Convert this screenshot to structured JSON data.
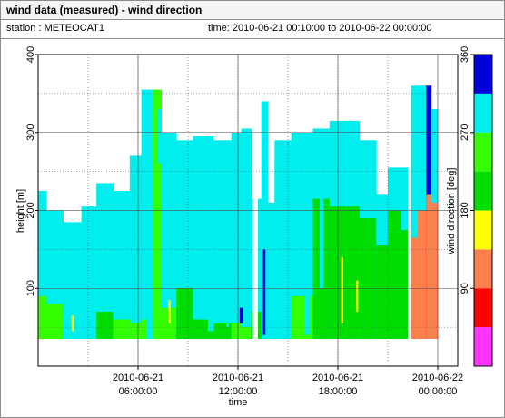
{
  "header": {
    "title": "wind data (measured) - wind direction",
    "station": "station : METEOCAT1",
    "time_range": "time: 2010-06-21 00:10:00 to 2010-06-22 00:00:00"
  },
  "chart_data": {
    "type": "heatmap",
    "xlabel": "time",
    "ylabel": "height [m]",
    "x_ticks": [
      {
        "hour": 6,
        "line1": "2010-06-21",
        "line2": "06:00:00"
      },
      {
        "hour": 12,
        "line1": "2010-06-21",
        "line2": "12:00:00"
      },
      {
        "hour": 18,
        "line1": "2010-06-21",
        "line2": "18:00:00"
      },
      {
        "hour": 24,
        "line1": "2010-06-22",
        "line2": "00:00:00"
      }
    ],
    "xlim_hours": [
      0,
      24
    ],
    "ylim": [
      0,
      400
    ],
    "y_ticks": [
      100,
      200,
      300,
      400
    ],
    "grid": true,
    "colorbar": {
      "label": "wind direction [deg]",
      "range": [
        0,
        360
      ],
      "ticks": [
        90,
        180,
        270,
        360
      ],
      "bins": [
        {
          "from": 0,
          "to": 45,
          "color": "#ff33ff"
        },
        {
          "from": 45,
          "to": 90,
          "color": "#ff0000"
        },
        {
          "from": 90,
          "to": 135,
          "color": "#ff7f4c"
        },
        {
          "from": 135,
          "to": 180,
          "color": "#ffff00"
        },
        {
          "from": 180,
          "to": 225,
          "color": "#00dd00"
        },
        {
          "from": 225,
          "to": 270,
          "color": "#33ff00"
        },
        {
          "from": 270,
          "to": 315,
          "color": "#00eeee"
        },
        {
          "from": 315,
          "to": 360,
          "color": "#0000dd"
        }
      ]
    },
    "segments": [
      {
        "t0": 0,
        "t1": 0.5,
        "top": 225,
        "dir": 290,
        "low": {
          "to": 90,
          "dir": 230
        }
      },
      {
        "t0": 0.5,
        "t1": 1.5,
        "top": 200,
        "dir": 290,
        "low": {
          "to": 80,
          "dir": 230
        }
      },
      {
        "t0": 1.5,
        "t1": 2.2,
        "top": 185,
        "dir": 290
      },
      {
        "t0": 2.2,
        "t1": 2.6,
        "top": 185,
        "dir": 280
      },
      {
        "t0": 2.6,
        "t1": 3.5,
        "top": 205,
        "dir": 290
      },
      {
        "t0": 3.5,
        "t1": 4.5,
        "top": 235,
        "dir": 290,
        "low": {
          "to": 70,
          "dir": 220
        }
      },
      {
        "t0": 4.5,
        "t1": 5.5,
        "top": 225,
        "dir": 290,
        "low": {
          "to": 60,
          "dir": 230
        }
      },
      {
        "t0": 5.5,
        "t1": 6.2,
        "top": 270,
        "dir": 290,
        "low": {
          "to": 55,
          "dir": 230
        }
      },
      {
        "t0": 6.2,
        "t1": 6.5,
        "top": 355,
        "dir": 290,
        "low": {
          "to": 60,
          "dir": 230
        }
      },
      {
        "t0": 6.5,
        "t1": 6.9,
        "top": 355,
        "dir": 285
      },
      {
        "t0": 6.9,
        "t1": 7.4,
        "top": 355,
        "dir": 230
      },
      {
        "t0": 7.4,
        "t1": 8.3,
        "top": 300,
        "dir": 290,
        "low": {
          "to": 75,
          "dir": 225
        }
      },
      {
        "t0": 8.3,
        "t1": 9.3,
        "top": 290,
        "dir": 290,
        "low": {
          "to": 100,
          "dir": 205
        }
      },
      {
        "t0": 9.3,
        "t1": 10.5,
        "top": 295,
        "dir": 290,
        "low": {
          "to": 60,
          "dir": 220
        }
      },
      {
        "t0": 10.5,
        "t1": 11.6,
        "top": 290,
        "dir": 290,
        "low": {
          "to": 55,
          "dir": 220
        }
      },
      {
        "t0": 11.6,
        "t1": 12.2,
        "top": 300,
        "dir": 290,
        "low": {
          "to": 55,
          "dir": 230
        }
      },
      {
        "t0": 12.2,
        "t1": 12.8,
        "top": 305,
        "dir": 290,
        "low": {
          "to": 50,
          "dir": 225
        }
      },
      {
        "t0": 12.8,
        "t1": 13.4,
        "top": 215,
        "dir": 290,
        "low": {
          "to": 70,
          "dir": 205
        }
      },
      {
        "t0": 13.4,
        "t1": 13.8,
        "top": 340,
        "dir": 285
      },
      {
        "t0": 13.8,
        "t1": 14.2,
        "top": 210,
        "dir": 290
      },
      {
        "t0": 14.2,
        "t1": 15.2,
        "top": 290,
        "dir": 290
      },
      {
        "t0": 15.2,
        "t1": 16.5,
        "top": 300,
        "dir": 290,
        "low": {
          "to": 90,
          "dir": 230
        }
      },
      {
        "t0": 16.5,
        "t1": 17.5,
        "top": 305,
        "dir": 290,
        "low": {
          "to": 215,
          "dir": 210
        }
      },
      {
        "t0": 17.5,
        "t1": 19.3,
        "top": 315,
        "dir": 290,
        "low": {
          "to": 205,
          "dir": 210
        }
      },
      {
        "t0": 19.3,
        "t1": 20.3,
        "top": 290,
        "dir": 290,
        "low": {
          "to": 190,
          "dir": 210
        }
      },
      {
        "t0": 20.3,
        "t1": 21.0,
        "top": 220,
        "dir": 290,
        "low": {
          "to": 155,
          "dir": 210
        }
      },
      {
        "t0": 21.0,
        "t1": 21.8,
        "top": 255,
        "dir": 290,
        "low": {
          "to": 200,
          "dir": 210
        }
      },
      {
        "t0": 21.8,
        "t1": 22.4,
        "top": 255,
        "dir": 285,
        "low": {
          "to": 175,
          "dir": 210
        }
      },
      {
        "t0": 22.4,
        "t1": 22.8,
        "top": 360,
        "dir": 290,
        "low": {
          "to": 165,
          "dir": 90
        }
      },
      {
        "t0": 22.8,
        "t1": 23.3,
        "top": 360,
        "dir": 290,
        "low": {
          "to": 200,
          "dir": 110
        }
      },
      {
        "t0": 23.3,
        "t1": 23.6,
        "top": 360,
        "dir": 335,
        "low": {
          "to": 220,
          "dir": 110
        }
      },
      {
        "t0": 23.6,
        "t1": 24.0,
        "top": 330,
        "dir": 290,
        "low": {
          "to": 210,
          "dir": 110
        }
      }
    ],
    "gaps": [
      {
        "t0": 12.9,
        "t1": 13.2
      },
      {
        "t0": 22.2,
        "t1": 22.4
      }
    ],
    "streaks": [
      {
        "t": 1.7,
        "w": 0.4,
        "from": 60,
        "to": 175,
        "dir": 280
      },
      {
        "t": 3.0,
        "w": 0.25,
        "from": 160,
        "to": 205,
        "dir": 280
      },
      {
        "t": 6.6,
        "w": 0.3,
        "from": 250,
        "to": 300,
        "dir": 280
      },
      {
        "t": 7.2,
        "w": 0.2,
        "from": 260,
        "to": 330,
        "dir": 280
      },
      {
        "t": 10.2,
        "w": 0.35,
        "from": 45,
        "to": 190,
        "dir": 280
      },
      {
        "t": 11.3,
        "w": 0.15,
        "from": 50,
        "to": 110,
        "dir": 280
      },
      {
        "t": 12.1,
        "w": 0.2,
        "from": 55,
        "to": 75,
        "dir": 340
      },
      {
        "t": 13.5,
        "w": 0.15,
        "from": 40,
        "to": 150,
        "dir": 340
      },
      {
        "t": 14.2,
        "w": 0.25,
        "from": 80,
        "to": 265,
        "dir": 280
      },
      {
        "t": 15.0,
        "w": 0.2,
        "from": 60,
        "to": 250,
        "dir": 280
      },
      {
        "t": 16.0,
        "w": 0.3,
        "from": 40,
        "to": 210,
        "dir": 280
      },
      {
        "t": 16.9,
        "w": 0.25,
        "from": 100,
        "to": 220,
        "dir": 280
      },
      {
        "t": 18.2,
        "w": 0.12,
        "from": 55,
        "to": 140,
        "dir": 150
      },
      {
        "t": 19.1,
        "w": 0.12,
        "from": 70,
        "to": 110,
        "dir": 150
      },
      {
        "t": 7.8,
        "w": 0.15,
        "from": 55,
        "to": 85,
        "dir": 150
      },
      {
        "t": 2.0,
        "w": 0.15,
        "from": 45,
        "to": 65,
        "dir": 150
      }
    ]
  }
}
